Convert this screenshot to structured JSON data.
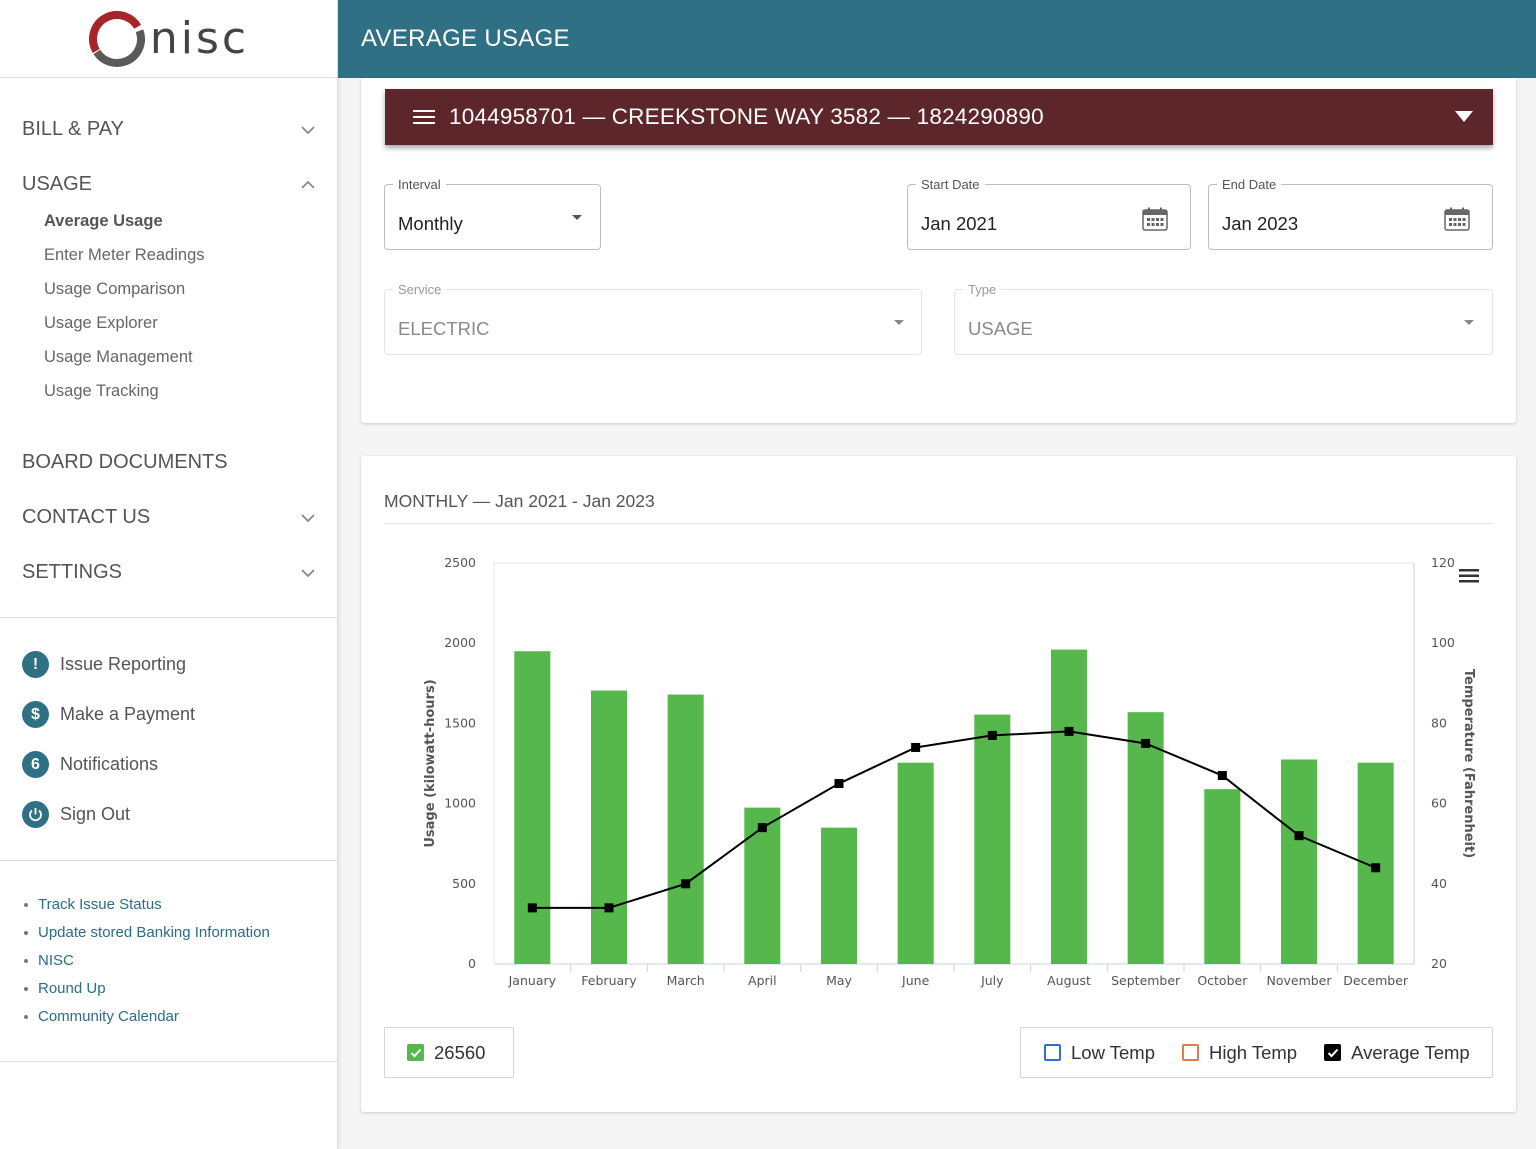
{
  "brand": {
    "logo_text": "nisc"
  },
  "header": {
    "title": "AVERAGE USAGE"
  },
  "sidebar": {
    "sections": [
      {
        "label": "BILL & PAY",
        "expanded": false,
        "has_chevron": true
      },
      {
        "label": "USAGE",
        "expanded": true,
        "has_chevron": true
      },
      {
        "label": "BOARD DOCUMENTS",
        "has_chevron": false
      },
      {
        "label": "CONTACT US",
        "expanded": false,
        "has_chevron": true
      },
      {
        "label": "SETTINGS",
        "expanded": false,
        "has_chevron": true
      }
    ],
    "usage_items": [
      {
        "label": "Average Usage",
        "active": true
      },
      {
        "label": "Enter Meter Readings"
      },
      {
        "label": "Usage Comparison"
      },
      {
        "label": "Usage Explorer"
      },
      {
        "label": "Usage Management"
      },
      {
        "label": "Usage Tracking"
      }
    ],
    "actions": [
      {
        "label": "Issue Reporting",
        "icon": "exclamation-icon",
        "glyph": "!"
      },
      {
        "label": "Make a Payment",
        "icon": "dollar-icon",
        "glyph": "$"
      },
      {
        "label": "Notifications",
        "icon": "notification-count-badge",
        "glyph": "6"
      },
      {
        "label": "Sign Out",
        "icon": "power-icon",
        "glyph": ""
      }
    ],
    "links": [
      {
        "label": "Track Issue Status"
      },
      {
        "label": "Update stored Banking Information"
      },
      {
        "label": "NISC"
      },
      {
        "label": "Round Up"
      },
      {
        "label": "Community Calendar"
      }
    ]
  },
  "account": {
    "label": "1044958701 — CREEKSTONE WAY 3582 — 1824290890"
  },
  "filters": {
    "interval": {
      "label": "Interval",
      "value": "Monthly"
    },
    "start_date": {
      "label": "Start Date",
      "value": "Jan 2021"
    },
    "end_date": {
      "label": "End Date",
      "value": "Jan 2023"
    },
    "service": {
      "label": "Service",
      "value": "ELECTRIC",
      "disabled": true
    },
    "type": {
      "label": "Type",
      "value": "USAGE",
      "disabled": true
    }
  },
  "chart_panel": {
    "title": "MONTHLY — Jan 2021 - Jan 2023"
  },
  "chart_data": {
    "type": "bar",
    "categories": [
      "January",
      "February",
      "March",
      "April",
      "May",
      "June",
      "July",
      "August",
      "September",
      "October",
      "November",
      "December"
    ],
    "series": [
      {
        "name": "26560",
        "type": "bar",
        "axis": "left",
        "color": "#55b74c",
        "values": [
          1950,
          1705,
          1680,
          975,
          850,
          1255,
          1555,
          1960,
          1570,
          1090,
          1275,
          1255
        ]
      },
      {
        "name": "Average Temp",
        "type": "line",
        "axis": "right",
        "color": "#000000",
        "values": [
          34,
          34,
          40,
          54,
          65,
          74,
          77,
          78,
          75,
          67,
          52,
          44
        ]
      }
    ],
    "ylabel": "Usage (kilowatt-hours)",
    "ylabel_right": "Temperature (Fahrenheit)",
    "ylim": [
      0,
      2500
    ],
    "yticks": [
      0,
      500,
      1000,
      1500,
      2000,
      2500
    ],
    "ylim_right": [
      20,
      120
    ],
    "yticks_right": [
      20,
      40,
      60,
      80,
      100,
      120
    ],
    "grid": false
  },
  "legend": {
    "left": [
      {
        "label": "26560",
        "color": "#55b74c",
        "checked": true
      }
    ],
    "right": [
      {
        "label": "Low Temp",
        "color": "#2f6fd6",
        "checked": false
      },
      {
        "label": "High Temp",
        "color": "#e37a4b",
        "checked": false
      },
      {
        "label": "Average Temp",
        "color": "#000000",
        "checked": true
      }
    ]
  }
}
